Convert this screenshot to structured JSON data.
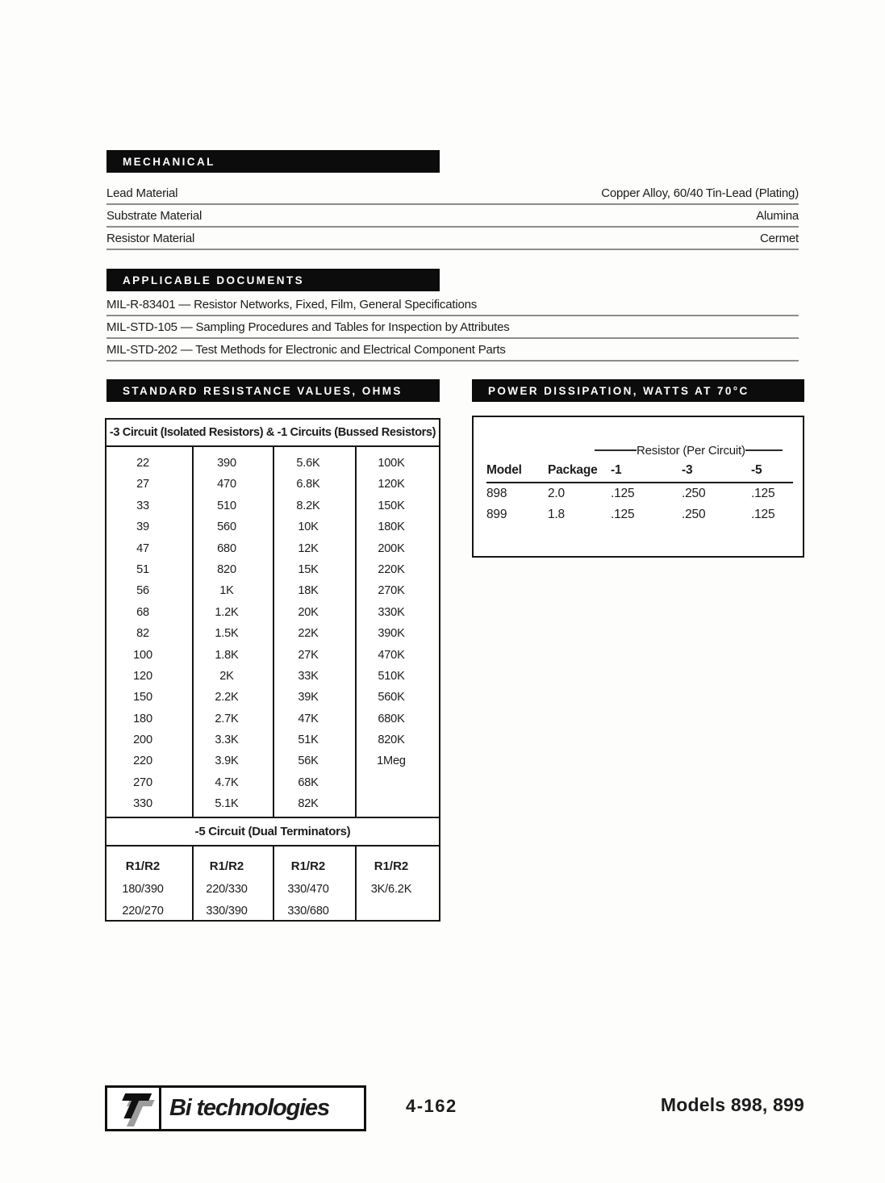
{
  "mechanical": {
    "title": "MECHANICAL",
    "rows": [
      {
        "label": "Lead Material",
        "value": "Copper Alloy, 60/40 Tin-Lead (Plating)"
      },
      {
        "label": "Substrate Material",
        "value": "Alumina"
      },
      {
        "label": "Resistor Material",
        "value": "Cermet"
      }
    ]
  },
  "documents": {
    "title": "APPLICABLE DOCUMENTS",
    "rows": [
      "MIL-R-83401 — Resistor Networks, Fixed, Film, General Specifications",
      "MIL-STD-105 — Sampling Procedures and Tables for Inspection by Attributes",
      "MIL-STD-202 — Test Methods for Electronic and Electrical Component Parts"
    ]
  },
  "resistance": {
    "title": "STANDARD RESISTANCE VALUES, OHMS",
    "combined_header": "-3 Circuit (Isolated Resistors) & -1 Circuits (Bussed Resistors)",
    "columns": [
      [
        "22",
        "27",
        "33",
        "39",
        "47",
        "51",
        "56",
        "68",
        "82",
        "100",
        "120",
        "150",
        "180",
        "200",
        "220",
        "270",
        "330"
      ],
      [
        "390",
        "470",
        "510",
        "560",
        "680",
        "820",
        "1K",
        "1.2K",
        "1.5K",
        "1.8K",
        "2K",
        "2.2K",
        "2.7K",
        "3.3K",
        "3.9K",
        "4.7K",
        "5.1K"
      ],
      [
        "5.6K",
        "6.8K",
        "8.2K",
        "10K",
        "12K",
        "15K",
        "18K",
        "20K",
        "22K",
        "27K",
        "33K",
        "39K",
        "47K",
        "51K",
        "56K",
        "68K",
        "82K"
      ],
      [
        "100K",
        "120K",
        "150K",
        "180K",
        "200K",
        "220K",
        "270K",
        "330K",
        "390K",
        "470K",
        "510K",
        "560K",
        "680K",
        "820K",
        "1Meg"
      ]
    ],
    "dual_header": "-5 Circuit (Dual Terminators)",
    "dual_column_label": "R1/R2",
    "dual_rows": [
      [
        "180/390",
        "220/330",
        "330/470",
        "3K/6.2K"
      ],
      [
        "220/270",
        "330/390",
        "330/680",
        ""
      ]
    ]
  },
  "power": {
    "title": "POWER DISSIPATION, WATTS AT 70°C",
    "group_header": "Resistor (Per Circuit)",
    "col_headers": [
      "Model",
      "Package",
      "-1",
      "-3",
      "-5"
    ],
    "rows": [
      [
        "898",
        "2.0",
        ".125",
        ".250",
        ".125"
      ],
      [
        "899",
        "1.8",
        ".125",
        ".250",
        ".125"
      ]
    ]
  },
  "footer": {
    "logo_text": "Bi technologies",
    "page_number": "4-162",
    "models_label": "Models 898, 899"
  }
}
